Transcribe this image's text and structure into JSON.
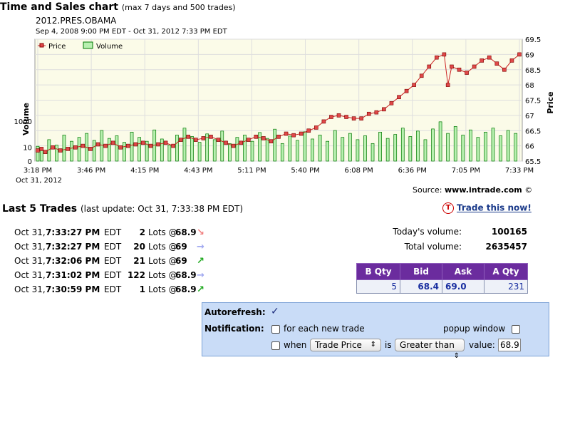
{
  "header": {
    "title": "Time and Sales chart",
    "title_note": "(max 7 days and 500 trades)",
    "symbol": "2012.PRES.OBAMA",
    "range": "Sep 4, 2008 9:00 PM EDT - Oct 31, 2012 7:33 PM EDT"
  },
  "chart_data": {
    "type": "bar+line",
    "legend": [
      "Price",
      "Volume"
    ],
    "legend_placement": "top-left",
    "colors": {
      "price": "#cc2222",
      "price_fill": "#e04848",
      "volume_fill": "#b8f0b0",
      "volume_stroke": "#007700",
      "plot_bg": "#fbfbe8",
      "grid": "#dedede"
    },
    "ylabel_left": "Volume",
    "ylabel_right": "Price",
    "left_ticks": [
      "1000",
      "10",
      "0"
    ],
    "right_ticks": [
      "69.5",
      "69",
      "68.5",
      "68",
      "67.5",
      "67",
      "66.5",
      "66",
      "65.5"
    ],
    "price_range": [
      65.5,
      69.5
    ],
    "x_ticks": [
      "3:18 PM",
      "3:46 PM",
      "4:15 PM",
      "4:43 PM",
      "5:11 PM",
      "5:40 PM",
      "6:08 PM",
      "6:36 PM",
      "7:05 PM",
      "7:33 PM"
    ],
    "x_date": "Oct 31, 2012",
    "grid": true,
    "price_points": [
      [
        0,
        65.85
      ],
      [
        1,
        65.9
      ],
      [
        2,
        65.8
      ],
      [
        4,
        65.95
      ],
      [
        6,
        65.85
      ],
      [
        8,
        65.9
      ],
      [
        10,
        65.95
      ],
      [
        12,
        66.0
      ],
      [
        14,
        65.9
      ],
      [
        16,
        66.05
      ],
      [
        18,
        66.0
      ],
      [
        20,
        66.1
      ],
      [
        22,
        65.95
      ],
      [
        24,
        66.0
      ],
      [
        26,
        66.05
      ],
      [
        28,
        66.1
      ],
      [
        30,
        66.0
      ],
      [
        32,
        66.05
      ],
      [
        34,
        66.1
      ],
      [
        36,
        66.0
      ],
      [
        38,
        66.2
      ],
      [
        40,
        66.3
      ],
      [
        42,
        66.2
      ],
      [
        44,
        66.25
      ],
      [
        46,
        66.3
      ],
      [
        48,
        66.2
      ],
      [
        50,
        66.1
      ],
      [
        52,
        66.0
      ],
      [
        54,
        66.1
      ],
      [
        56,
        66.2
      ],
      [
        58,
        66.3
      ],
      [
        60,
        66.25
      ],
      [
        62,
        66.15
      ],
      [
        64,
        66.3
      ],
      [
        66,
        66.4
      ],
      [
        68,
        66.35
      ],
      [
        70,
        66.4
      ],
      [
        72,
        66.5
      ],
      [
        74,
        66.6
      ],
      [
        76,
        66.8
      ],
      [
        78,
        66.95
      ],
      [
        80,
        67.0
      ],
      [
        82,
        66.95
      ],
      [
        84,
        66.9
      ],
      [
        86,
        66.9
      ],
      [
        88,
        67.05
      ],
      [
        90,
        67.1
      ],
      [
        92,
        67.2
      ],
      [
        94,
        67.4
      ],
      [
        96,
        67.6
      ],
      [
        98,
        67.8
      ],
      [
        100,
        68.0
      ],
      [
        102,
        68.3
      ],
      [
        104,
        68.6
      ],
      [
        106,
        68.9
      ],
      [
        108,
        69.0
      ],
      [
        109,
        68.0
      ],
      [
        110,
        68.6
      ],
      [
        112,
        68.5
      ],
      [
        114,
        68.4
      ],
      [
        116,
        68.6
      ],
      [
        118,
        68.8
      ],
      [
        120,
        68.9
      ],
      [
        122,
        68.7
      ],
      [
        124,
        68.5
      ],
      [
        126,
        68.8
      ],
      [
        128,
        69.0
      ]
    ],
    "volume_points": [
      [
        0,
        12
      ],
      [
        1,
        8
      ],
      [
        3,
        40
      ],
      [
        5,
        15
      ],
      [
        7,
        90
      ],
      [
        9,
        30
      ],
      [
        11,
        60
      ],
      [
        13,
        120
      ],
      [
        15,
        35
      ],
      [
        17,
        200
      ],
      [
        19,
        50
      ],
      [
        21,
        80
      ],
      [
        23,
        25
      ],
      [
        25,
        150
      ],
      [
        27,
        60
      ],
      [
        29,
        30
      ],
      [
        31,
        220
      ],
      [
        33,
        45
      ],
      [
        35,
        15
      ],
      [
        37,
        90
      ],
      [
        39,
        300
      ],
      [
        41,
        70
      ],
      [
        43,
        25
      ],
      [
        45,
        110
      ],
      [
        47,
        40
      ],
      [
        49,
        180
      ],
      [
        51,
        20
      ],
      [
        53,
        60
      ],
      [
        55,
        90
      ],
      [
        57,
        30
      ],
      [
        59,
        140
      ],
      [
        61,
        50
      ],
      [
        63,
        250
      ],
      [
        65,
        20
      ],
      [
        67,
        75
      ],
      [
        69,
        35
      ],
      [
        71,
        160
      ],
      [
        73,
        45
      ],
      [
        75,
        90
      ],
      [
        77,
        30
      ],
      [
        79,
        200
      ],
      [
        81,
        60
      ],
      [
        83,
        120
      ],
      [
        85,
        40
      ],
      [
        87,
        80
      ],
      [
        89,
        20
      ],
      [
        91,
        150
      ],
      [
        93,
        50
      ],
      [
        95,
        100
      ],
      [
        97,
        300
      ],
      [
        99,
        70
      ],
      [
        101,
        180
      ],
      [
        103,
        40
      ],
      [
        105,
        260
      ],
      [
        107,
        900
      ],
      [
        109,
        120
      ],
      [
        111,
        400
      ],
      [
        113,
        90
      ],
      [
        115,
        220
      ],
      [
        117,
        60
      ],
      [
        119,
        150
      ],
      [
        121,
        300
      ],
      [
        123,
        80
      ],
      [
        125,
        200
      ],
      [
        127,
        120
      ]
    ]
  },
  "source": {
    "label": "Source:",
    "site": "www.intrade.com",
    "mark": "©"
  },
  "last_trades": {
    "title": "Last 5 Trades",
    "update": "(last update: Oct 31, 7:33:38 PM EDT)",
    "rows": [
      {
        "date": "Oct 31,",
        "time": "7:33:27 PM",
        "tz": "EDT",
        "qty": "2",
        "lots": "Lots @",
        "price": "68.9",
        "arrow": "↘",
        "arrow_color": "#f08080"
      },
      {
        "date": "Oct 31,",
        "time": "7:32:27 PM",
        "tz": "EDT",
        "qty": "20",
        "lots": "Lots @",
        "price": "69",
        "arrow": "→",
        "arrow_color": "#a0a8f0"
      },
      {
        "date": "Oct 31,",
        "time": "7:32:06 PM",
        "tz": "EDT",
        "qty": "21",
        "lots": "Lots @",
        "price": "69",
        "arrow": "↗",
        "arrow_color": "#22aa22"
      },
      {
        "date": "Oct 31,",
        "time": "7:31:02 PM",
        "tz": "EDT",
        "qty": "122",
        "lots": "Lots @",
        "price": "68.9",
        "arrow": "→",
        "arrow_color": "#a0a8f0"
      },
      {
        "date": "Oct 31,",
        "time": "7:30:59 PM",
        "tz": "EDT",
        "qty": "1",
        "lots": "Lots @",
        "price": "68.9",
        "arrow": "↗",
        "arrow_color": "#22aa22"
      }
    ]
  },
  "trade_now": "Trade this now!",
  "trade_icon": "T",
  "volume": {
    "today_label": "Today's volume:",
    "today_value": "100165",
    "total_label": "Total volume:",
    "total_value": "2635457"
  },
  "quote": {
    "headers": [
      "B Qty",
      "Bid",
      "Ask",
      "A Qty"
    ],
    "values": [
      "5",
      "68.4",
      "69.0",
      "231"
    ]
  },
  "notify": {
    "autorefresh_label": "Autorefresh:",
    "autorefresh_mark": "✓",
    "notification_label": "Notification:",
    "each_trade": "for each new trade",
    "popup": "popup window",
    "when": "when",
    "field_select": "Trade Price",
    "is": "is",
    "cond_select": "Greater than",
    "value_label": "value:",
    "value": "68.9",
    "select_arrow": "⇕"
  }
}
